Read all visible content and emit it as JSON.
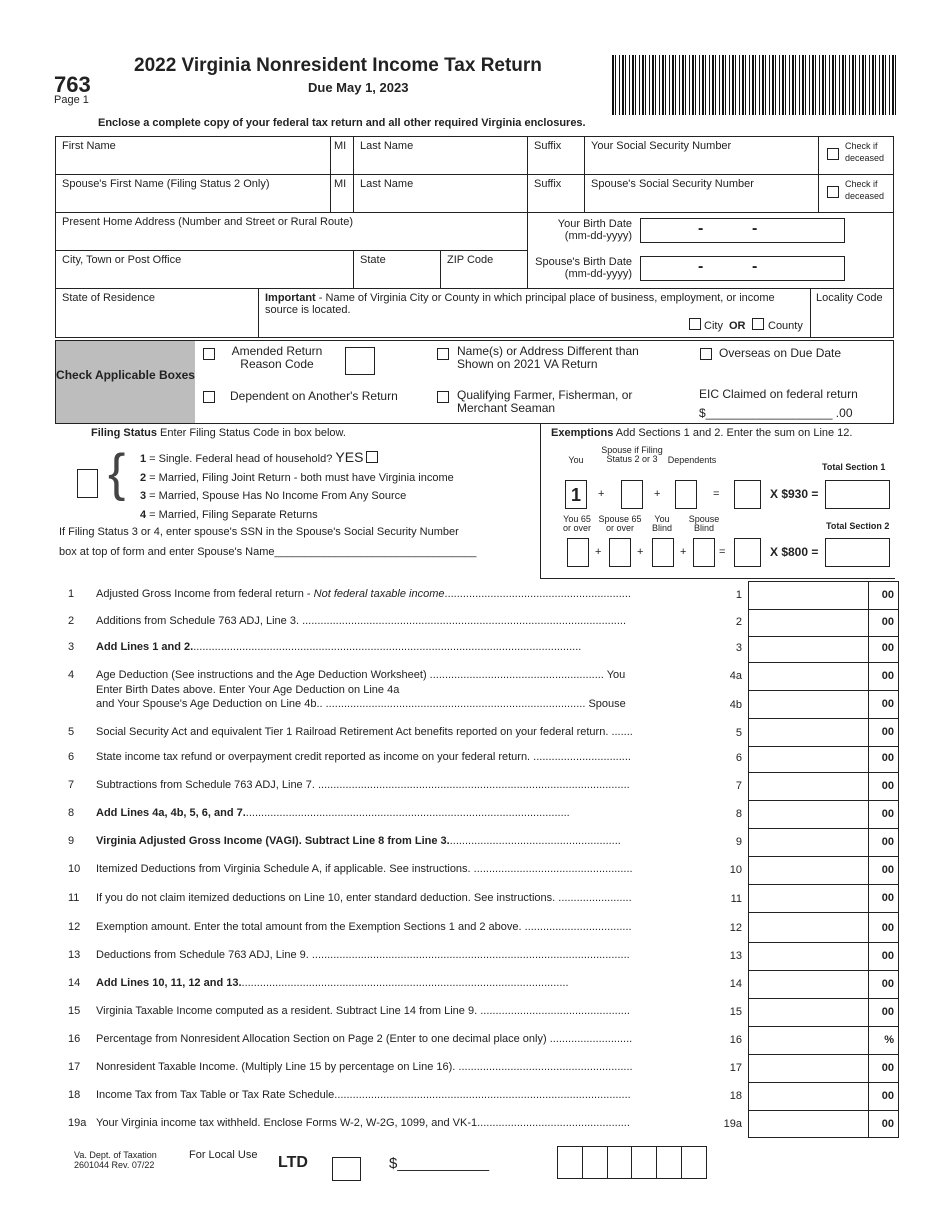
{
  "header": {
    "form_number": "763",
    "page": "Page 1",
    "title": "2022 Virginia Nonresident Income Tax Return",
    "due": "Due May 1, 2023",
    "enclose": "Enclose a complete copy of your federal tax return and all other required Virginia enclosures."
  },
  "fields": {
    "first_name": "First Name",
    "mi": "MI",
    "last_name": "Last Name",
    "suffix": "Suffix",
    "ssn": "Your Social Security Number",
    "check_deceased": "Check if deceased",
    "spouse_first": "Spouse's First Name (Filing Status 2 Only)",
    "spouse_ssn": "Spouse's Social Security Number",
    "address": "Present Home Address (Number and Street or Rural Route)",
    "birth_date": "Your Birth Date (mm-dd-yyyy)",
    "city": "City, Town or Post Office",
    "state": "State",
    "zip": "ZIP Code",
    "spouse_birth": "Spouse's Birth Date (mm-dd-yyyy)",
    "state_res": "State of Residence",
    "important_b": "Important",
    "important": " - Name of Virginia City or County in which principal place of business, employment, or income source is located.",
    "city_opt": "City",
    "or": "OR",
    "county_opt": "County",
    "locality": "Locality Code",
    "dash": "-"
  },
  "boxes": {
    "label": "Check Applicable Boxes",
    "amended": "Amended Return",
    "reason": "Reason Code",
    "name_diff": "Name(s) or Address Different than Shown on 2021 VA Return",
    "overseas": "Overseas on Due Date",
    "dependent": "Dependent on Another's Return",
    "farmer": "Qualifying Farmer, Fisherman, or Merchant Seaman",
    "eic": "EIC Claimed on federal return",
    "eic_amt": "$___________________ .00"
  },
  "filing": {
    "title": "Filing Status",
    "instr": " Enter Filing Status Code in box below.",
    "opts": [
      {
        "n": "1",
        "t": " = Single. Federal head of household? "
      },
      {
        "n": "2",
        "t": " = Married, Filing Joint Return - both must have Virginia income"
      },
      {
        "n": "3",
        "t": " = Married, Spouse Has No Income From Any Source"
      },
      {
        "n": "4",
        "t": " = Married, Filing Separate Returns"
      }
    ],
    "yes": "YES",
    "note1": "If Filing Status 3 or 4, enter spouse's SSN in the Spouse's Social Security Number",
    "note2": "box at top of form and enter Spouse's Name_________________________________"
  },
  "exemptions": {
    "title": "Exemptions",
    "instr": " Add Sections 1 and 2. Enter the sum on Line 12.",
    "you": "You",
    "spouse": "Spouse if Filing Status 2 or 3",
    "dependents": "Dependents",
    "you_value": "1",
    "mult1": "X $930 =",
    "total1": "Total Section 1",
    "you65": "You 65 or over",
    "sp65": "Spouse 65 or over",
    "youblind": "You Blind",
    "spblind": "Spouse Blind",
    "mult2": "X $800 =",
    "total2": "Total Section 2",
    "plus": "+",
    "eq": "="
  },
  "lines": [
    {
      "n": "1",
      "t": "Adjusted Gross Income from federal return - <i>Not federal taxable income</i>.............................................................",
      "ln": "1",
      "c": "00"
    },
    {
      "n": "2",
      "t": "Additions from Schedule 763 ADJ, Line 3. ..........................................................................................................",
      "ln": "2",
      "c": "00"
    },
    {
      "n": "3",
      "t": "<b>Add Lines 1 and 2.</b>...............................................................................................................................",
      "ln": "3",
      "c": "00"
    },
    {
      "n": "4",
      "t": "Age Deduction (See instructions and the Age Deduction Worksheet) ......................................................... You",
      "ln": "4a",
      "c": "00"
    },
    {
      "n": "",
      "t": "and Your Spouse's Age Deduction on Line 4b.. ..................................................................................... Spouse",
      "ln": "4b",
      "c": "00"
    },
    {
      "n": "5",
      "t": "Social Security Act and equivalent Tier 1 Railroad Retirement Act benefits reported on your federal return. .......",
      "ln": "5",
      "c": "00"
    },
    {
      "n": "6",
      "t": "State income tax refund or overpayment credit reported as income on your federal return. ................................",
      "ln": "6",
      "c": "00"
    },
    {
      "n": "7",
      "t": "Subtractions from Schedule 763 ADJ, Line 7. ......................................................................................................",
      "ln": "7",
      "c": "00"
    },
    {
      "n": "8",
      "t": "<b>Add Lines 4a, 4b, 5, 6, and 7.</b>..........................................................................................................",
      "ln": "8",
      "c": "00"
    },
    {
      "n": "9",
      "t": "<b>Virginia Adjusted Gross Income (VAGI). Subtract Line 8 from Line 3.</b>........................................................",
      "ln": "9",
      "c": "00"
    },
    {
      "n": "10",
      "t": "Itemized Deductions from Virginia Schedule A, if applicable. See instructions. ....................................................",
      "ln": "10",
      "c": "00"
    },
    {
      "n": "11",
      "t": "If you do not claim itemized deductions on Line 10, enter standard deduction.  See instructions. ........................",
      "ln": "11",
      "c": "00"
    },
    {
      "n": "12",
      "t": "Exemption amount. Enter the total amount from the Exemption Sections 1 and 2 above. ...................................",
      "ln": "12",
      "c": "00"
    },
    {
      "n": "13",
      "t": "Deductions from Schedule 763 ADJ, Line 9. ........................................................................................................",
      "ln": "13",
      "c": "00"
    },
    {
      "n": "14",
      "t": "<b>Add Lines 10, 11, 12 and 13.</b>...........................................................................................................",
      "ln": "14",
      "c": "00"
    },
    {
      "n": "15",
      "t": "Virginia Taxable Income computed as a resident. Subtract Line 14 from Line 9. .................................................",
      "ln": "15",
      "c": "00"
    },
    {
      "n": "16",
      "t": "Percentage from Nonresident Allocation Section on Page 2 (Enter to one decimal place only) ...........................",
      "ln": "16",
      "c": "%"
    },
    {
      "n": "17",
      "t": "Nonresident Taxable Income. (Multiply Line 15 by percentage on Line 16). .........................................................",
      "ln": "17",
      "c": "00"
    },
    {
      "n": "18",
      "t": "Income Tax from Tax Table or Tax Rate Schedule.................................................................................................",
      "ln": "18",
      "c": "00"
    },
    {
      "n": "19a",
      "t": "Your Virginia income tax withheld. Enclose Forms W-2, W-2G, 1099, and VK-1..................................................",
      "ln": "19a",
      "c": "00"
    }
  ],
  "line4_mid": "Enter Birth Dates above. Enter Your Age Deduction on Line 4a",
  "footer": {
    "dept": "Va. Dept. of Taxation",
    "code": "2601044  Rev. 07/22",
    "local": "For Local Use",
    "ltd": "LTD",
    "dollar": "$___________"
  }
}
